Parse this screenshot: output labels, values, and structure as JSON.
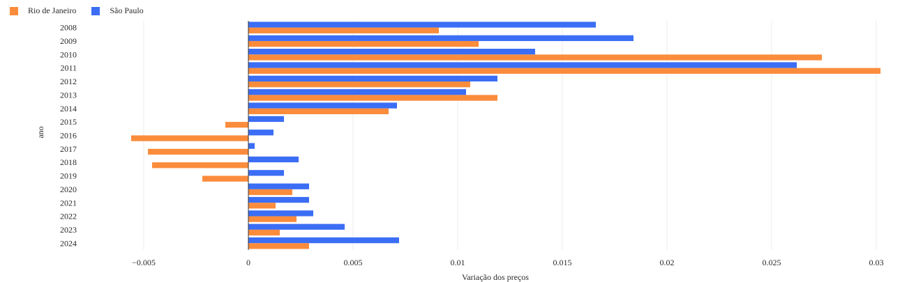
{
  "chart_data": {
    "type": "bar",
    "orientation": "horizontal",
    "categories": [
      "2008",
      "2009",
      "2010",
      "2011",
      "2012",
      "2013",
      "2014",
      "2015",
      "2016",
      "2017",
      "2018",
      "2019",
      "2020",
      "2021",
      "2022",
      "2023",
      "2024"
    ],
    "series": [
      {
        "name": "Rio de Janeiro",
        "color": "#fb8c3c",
        "values": [
          0.0091,
          0.011,
          0.0274,
          0.0302,
          0.0106,
          0.0119,
          0.0067,
          -0.0011,
          -0.0056,
          -0.0048,
          -0.0046,
          -0.0022,
          0.0021,
          0.0013,
          0.0023,
          0.0015,
          0.0029
        ]
      },
      {
        "name": "São Paulo",
        "color": "#3b6ef5",
        "values": [
          0.0166,
          0.0184,
          0.0137,
          0.0262,
          0.0119,
          0.0104,
          0.0071,
          0.0017,
          0.0012,
          0.0003,
          0.0024,
          0.0017,
          0.0029,
          0.0029,
          0.0031,
          0.0046,
          0.0072
        ]
      }
    ],
    "xlabel": "Variação dos preços",
    "ylabel": "ano",
    "xlim": [
      -0.0077,
      0.0307
    ],
    "xticks": [
      -0.005,
      0,
      0.005,
      0.01,
      0.015,
      0.02,
      0.025,
      0.03
    ],
    "xtick_labels": [
      "−0.005",
      "0",
      "0.005",
      "0.01",
      "0.015",
      "0.02",
      "0.025",
      "0.03"
    ],
    "grid": true,
    "legend_position": "top-left"
  }
}
